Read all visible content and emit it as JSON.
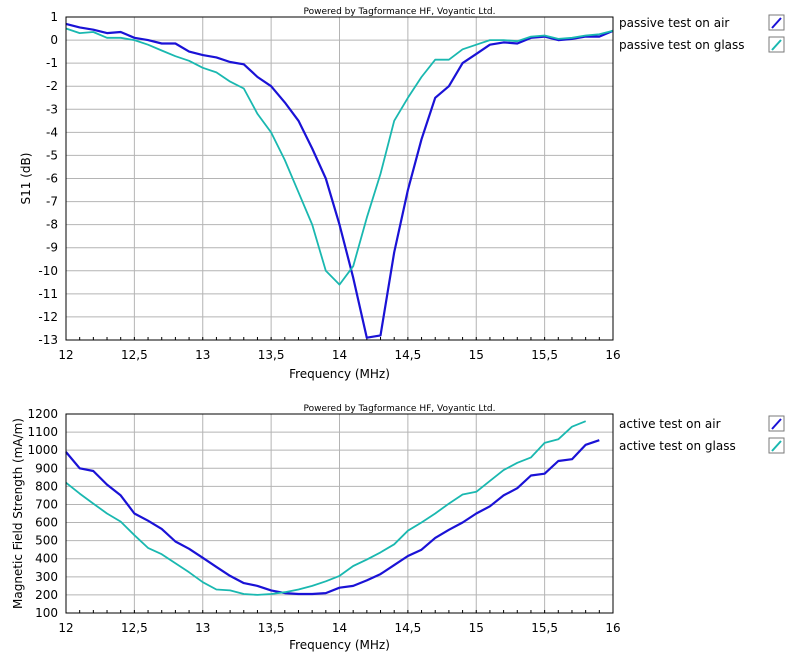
{
  "chart_data": [
    {
      "type": "line",
      "title": "Powered by Tagformance HF, Voyantic Ltd.",
      "xlabel": "Frequency (MHz)",
      "ylabel": "S11 (dB)",
      "xlim": [
        12,
        16
      ],
      "ylim": [
        -13,
        1
      ],
      "x_ticks": [
        "12",
        "12,5",
        "13",
        "13,5",
        "14",
        "14,5",
        "15",
        "15,5",
        "16"
      ],
      "y_ticks": [
        "1",
        "0",
        "-1",
        "-2",
        "-3",
        "-4",
        "-5",
        "-6",
        "-7",
        "-8",
        "-9",
        "-10",
        "-11",
        "-12",
        "-13"
      ],
      "grid": true,
      "legend_position": "right",
      "series": [
        {
          "name": "passive test on air",
          "color": "#1a12d6",
          "points": [
            [
              12.0,
              0.7
            ],
            [
              12.1,
              0.55
            ],
            [
              12.2,
              0.45
            ],
            [
              12.3,
              0.3
            ],
            [
              12.4,
              0.35
            ],
            [
              12.5,
              0.1
            ],
            [
              12.6,
              0.0
            ],
            [
              12.7,
              -0.15
            ],
            [
              12.8,
              -0.15
            ],
            [
              12.9,
              -0.5
            ],
            [
              13.0,
              -0.65
            ],
            [
              13.1,
              -0.75
            ],
            [
              13.2,
              -0.95
            ],
            [
              13.3,
              -1.05
            ],
            [
              13.4,
              -1.6
            ],
            [
              13.5,
              -2.0
            ],
            [
              13.6,
              -2.7
            ],
            [
              13.7,
              -3.5
            ],
            [
              13.8,
              -4.7
            ],
            [
              13.9,
              -6.0
            ],
            [
              14.0,
              -8.0
            ],
            [
              14.1,
              -10.3
            ],
            [
              14.2,
              -12.9
            ],
            [
              14.3,
              -12.8
            ],
            [
              14.4,
              -9.2
            ],
            [
              14.5,
              -6.5
            ],
            [
              14.6,
              -4.3
            ],
            [
              14.7,
              -2.5
            ],
            [
              14.8,
              -2.0
            ],
            [
              14.9,
              -1.0
            ],
            [
              15.0,
              -0.6
            ],
            [
              15.1,
              -0.2
            ],
            [
              15.2,
              -0.1
            ],
            [
              15.3,
              -0.15
            ],
            [
              15.4,
              0.1
            ],
            [
              15.5,
              0.15
            ],
            [
              15.6,
              0.0
            ],
            [
              15.7,
              0.05
            ],
            [
              15.8,
              0.15
            ],
            [
              15.9,
              0.15
            ],
            [
              16.0,
              0.4
            ]
          ]
        },
        {
          "name": "passive test on glass",
          "color": "#1ab8b0",
          "points": [
            [
              12.0,
              0.5
            ],
            [
              12.1,
              0.3
            ],
            [
              12.2,
              0.35
            ],
            [
              12.3,
              0.1
            ],
            [
              12.4,
              0.1
            ],
            [
              12.5,
              0.0
            ],
            [
              12.6,
              -0.2
            ],
            [
              12.7,
              -0.45
            ],
            [
              12.8,
              -0.7
            ],
            [
              12.9,
              -0.9
            ],
            [
              13.0,
              -1.2
            ],
            [
              13.1,
              -1.4
            ],
            [
              13.2,
              -1.8
            ],
            [
              13.3,
              -2.1
            ],
            [
              13.4,
              -3.2
            ],
            [
              13.5,
              -4.0
            ],
            [
              13.6,
              -5.2
            ],
            [
              13.7,
              -6.6
            ],
            [
              13.8,
              -8.0
            ],
            [
              13.9,
              -10.0
            ],
            [
              14.0,
              -10.6
            ],
            [
              14.1,
              -9.8
            ],
            [
              14.2,
              -7.7
            ],
            [
              14.3,
              -5.8
            ],
            [
              14.4,
              -3.5
            ],
            [
              14.5,
              -2.5
            ],
            [
              14.6,
              -1.6
            ],
            [
              14.7,
              -0.85
            ],
            [
              14.8,
              -0.85
            ],
            [
              14.9,
              -0.4
            ],
            [
              15.0,
              -0.2
            ],
            [
              15.1,
              0.0
            ],
            [
              15.2,
              0.0
            ],
            [
              15.3,
              -0.05
            ],
            [
              15.4,
              0.15
            ],
            [
              15.5,
              0.2
            ],
            [
              15.6,
              0.05
            ],
            [
              15.7,
              0.1
            ],
            [
              15.8,
              0.2
            ],
            [
              15.9,
              0.25
            ],
            [
              16.0,
              0.4
            ]
          ]
        }
      ]
    },
    {
      "type": "line",
      "title": "Powered by Tagformance HF, Voyantic Ltd.",
      "xlabel": "Frequency (MHz)",
      "ylabel": "Magnetic Field Strength (mA/m)",
      "xlim": [
        12,
        16
      ],
      "ylim": [
        100,
        1200
      ],
      "x_ticks": [
        "12",
        "12,5",
        "13",
        "13,5",
        "14",
        "14,5",
        "15",
        "15,5",
        "16"
      ],
      "y_ticks": [
        "1200",
        "1100",
        "1000",
        "900",
        "800",
        "700",
        "600",
        "500",
        "400",
        "300",
        "200",
        "100"
      ],
      "grid": true,
      "legend_position": "right",
      "series": [
        {
          "name": "active test on air",
          "color": "#1a12d6",
          "points": [
            [
              12.0,
              990
            ],
            [
              12.1,
              900
            ],
            [
              12.2,
              885
            ],
            [
              12.3,
              810
            ],
            [
              12.4,
              750
            ],
            [
              12.5,
              650
            ],
            [
              12.6,
              610
            ],
            [
              12.7,
              565
            ],
            [
              12.8,
              495
            ],
            [
              12.9,
              455
            ],
            [
              13.0,
              405
            ],
            [
              13.1,
              355
            ],
            [
              13.2,
              305
            ],
            [
              13.3,
              265
            ],
            [
              13.4,
              250
            ],
            [
              13.5,
              225
            ],
            [
              13.6,
              210
            ],
            [
              13.7,
              205
            ],
            [
              13.8,
              205
            ],
            [
              13.9,
              210
            ],
            [
              14.0,
              240
            ],
            [
              14.1,
              250
            ],
            [
              14.2,
              280
            ],
            [
              14.3,
              315
            ],
            [
              14.4,
              365
            ],
            [
              14.5,
              415
            ],
            [
              14.6,
              450
            ],
            [
              14.7,
              515
            ],
            [
              14.8,
              560
            ],
            [
              14.9,
              600
            ],
            [
              15.0,
              650
            ],
            [
              15.1,
              690
            ],
            [
              15.2,
              750
            ],
            [
              15.3,
              790
            ],
            [
              15.4,
              860
            ],
            [
              15.5,
              870
            ],
            [
              15.6,
              940
            ],
            [
              15.7,
              950
            ],
            [
              15.8,
              1030
            ],
            [
              15.9,
              1055
            ]
          ]
        },
        {
          "name": "active test on glass",
          "color": "#1ab8b0",
          "points": [
            [
              12.0,
              820
            ],
            [
              12.1,
              760
            ],
            [
              12.2,
              705
            ],
            [
              12.3,
              650
            ],
            [
              12.4,
              605
            ],
            [
              12.5,
              530
            ],
            [
              12.6,
              460
            ],
            [
              12.7,
              425
            ],
            [
              12.8,
              375
            ],
            [
              12.9,
              325
            ],
            [
              13.0,
              270
            ],
            [
              13.1,
              230
            ],
            [
              13.2,
              225
            ],
            [
              13.3,
              205
            ],
            [
              13.4,
              200
            ],
            [
              13.5,
              205
            ],
            [
              13.6,
              215
            ],
            [
              13.7,
              230
            ],
            [
              13.8,
              250
            ],
            [
              13.9,
              275
            ],
            [
              14.0,
              305
            ],
            [
              14.1,
              360
            ],
            [
              14.2,
              395
            ],
            [
              14.3,
              435
            ],
            [
              14.4,
              480
            ],
            [
              14.5,
              555
            ],
            [
              14.6,
              600
            ],
            [
              14.7,
              650
            ],
            [
              14.8,
              705
            ],
            [
              14.9,
              755
            ],
            [
              15.0,
              770
            ],
            [
              15.1,
              830
            ],
            [
              15.2,
              890
            ],
            [
              15.3,
              930
            ],
            [
              15.4,
              960
            ],
            [
              15.5,
              1040
            ],
            [
              15.6,
              1060
            ],
            [
              15.7,
              1130
            ],
            [
              15.8,
              1160
            ]
          ]
        }
      ]
    }
  ]
}
